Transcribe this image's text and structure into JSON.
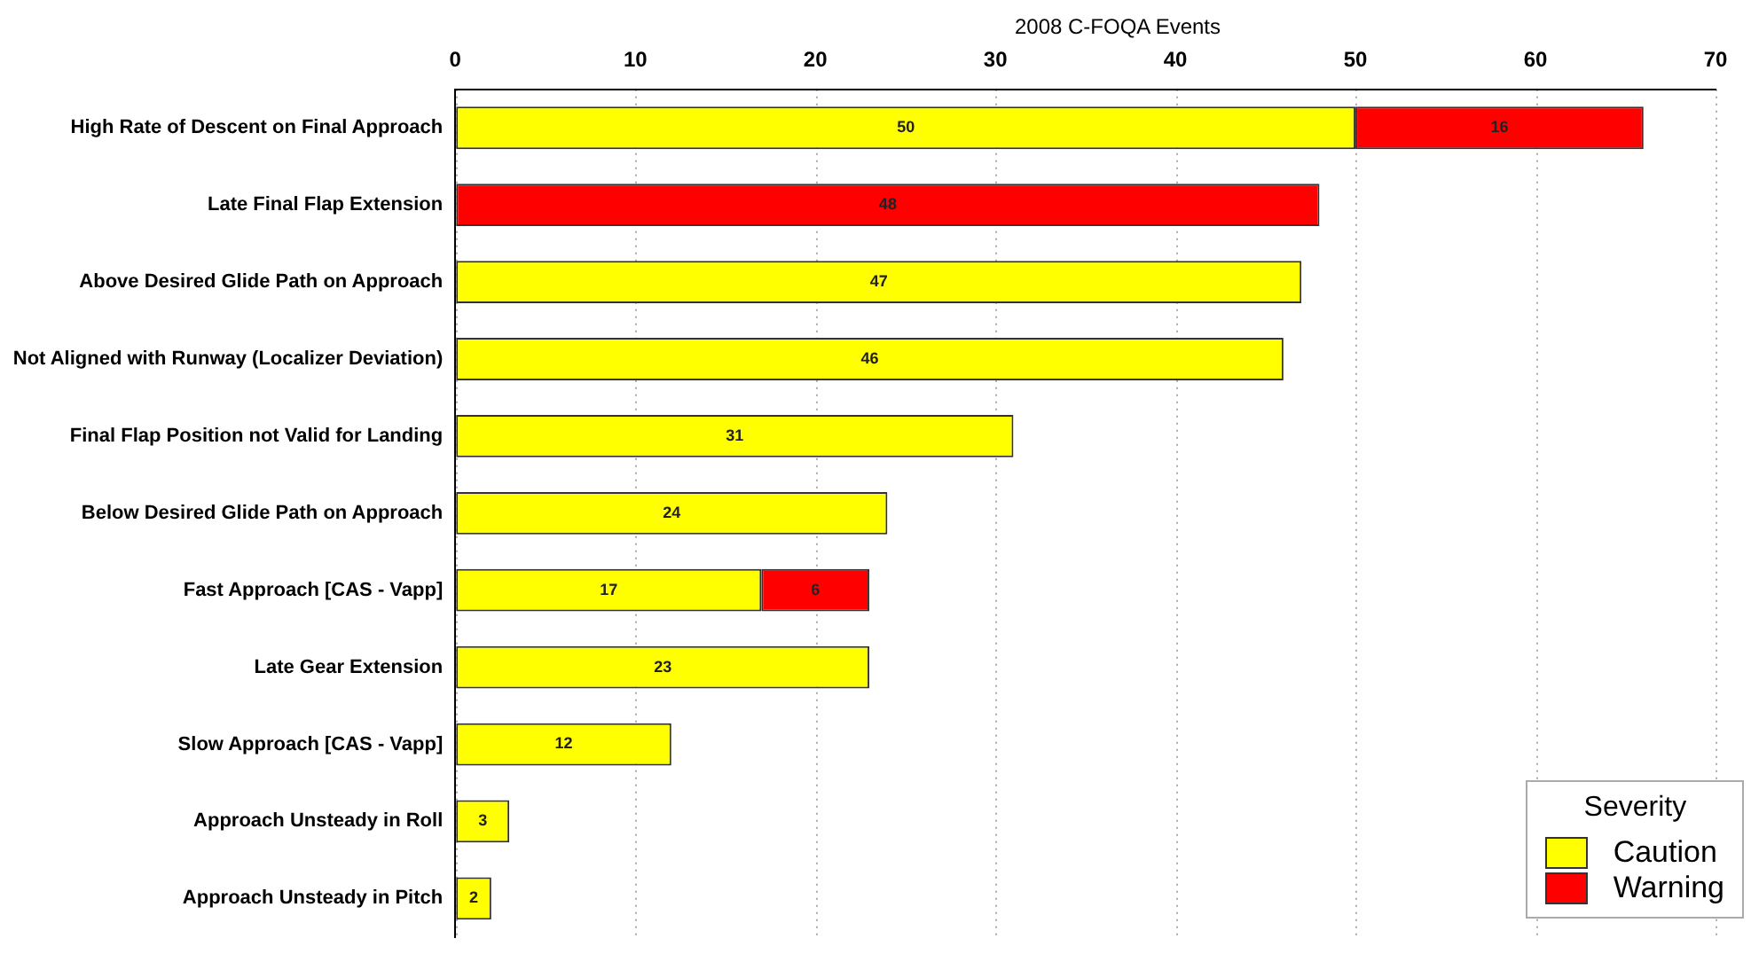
{
  "chart_data": {
    "type": "bar",
    "orientation": "horizontal",
    "stacked": true,
    "title": "2008 C-FOQA Events",
    "categories": [
      "High Rate of Descent on Final Approach",
      "Late Final Flap Extension",
      "Above Desired Glide Path on Approach",
      "Not Aligned with Runway (Localizer Deviation)",
      "Final Flap Position not Valid for Landing",
      "Below Desired Glide Path on Approach",
      "Fast Approach [CAS - Vapp]",
      "Late Gear Extension",
      "Slow Approach [CAS - Vapp]",
      "Approach Unsteady in Roll",
      "Approach Unsteady in Pitch"
    ],
    "series": [
      {
        "name": "Caution",
        "color": "#ffff00",
        "values": [
          50,
          null,
          47,
          46,
          31,
          24,
          17,
          23,
          12,
          3,
          2
        ]
      },
      {
        "name": "Warning",
        "color": "#ff0000",
        "values": [
          16,
          48,
          null,
          null,
          null,
          null,
          6,
          null,
          null,
          null,
          null
        ]
      }
    ],
    "xlim": [
      0,
      70
    ],
    "xticks": [
      0,
      10,
      20,
      30,
      40,
      50,
      60,
      70
    ],
    "grid": "x",
    "data_labels": true,
    "legend": "bottom right",
    "legend_title": "Severity"
  }
}
